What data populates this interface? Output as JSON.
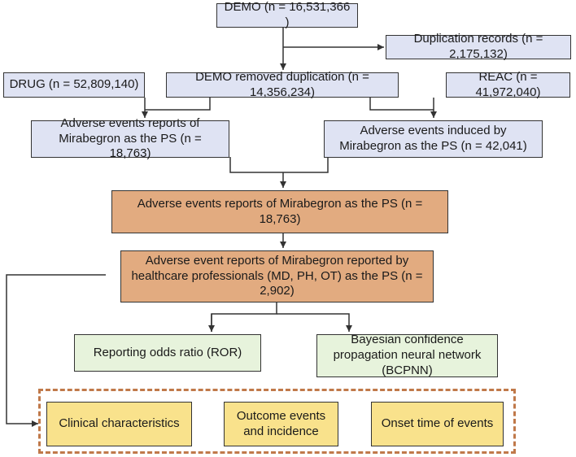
{
  "nodes": {
    "demo": "DEMO (n = 16,531,366 )",
    "duplication": "Duplication records (n = 2,175,132)",
    "drug": "DRUG (n = 52,809,140)",
    "demo_removed": "DEMO removed duplication (n = 14,356,234)",
    "reac": "REAC (n = 41,972,040)",
    "ae_reports_left": "Adverse events reports of Mirabegron as the PS (n = 18,763)",
    "ae_induced": "Adverse events induced by Mirabegron as the PS (n = 42,041)",
    "ae_reports_center": "Adverse events reports of Mirabegron as the PS (n = 18,763)",
    "ae_healthcare": "Adverse event reports of Mirabegron reported by healthcare professionals (MD, PH, OT) as the PS (n = 2,902)",
    "ror": "Reporting odds ratio (ROR)",
    "bcpnn": "Bayesian confidence propagation neural network (BCPNN)",
    "clinical": "Clinical characteristics",
    "outcome": "Outcome events and incidence",
    "onset": "Onset time of events"
  },
  "colors": {
    "blue": "#dfe3f3",
    "orange": "#e2ab80",
    "green": "#e7f3dc",
    "yellow": "#f9e28c",
    "dashed_border": "#c0794a",
    "line": "#333333"
  }
}
